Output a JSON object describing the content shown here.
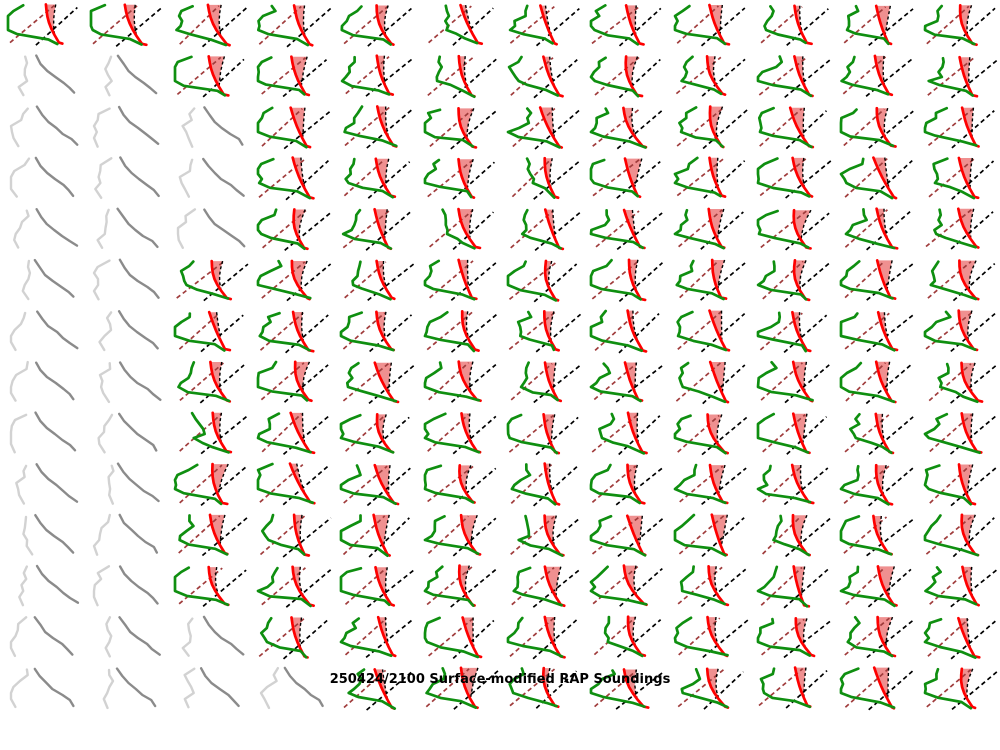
{
  "title": "250424/2100 Surface-modified RAP Soundings",
  "chart_data": {
    "type": "small_multiples",
    "subplot_type": "skewt_sounding_thumbnail",
    "title": "250424/2100 Surface-modified RAP Soundings",
    "grid": {
      "columns": 12,
      "rows": 14
    },
    "cell_states": [
      "cccccccccccc",
      "ggcccccccccc",
      "gggccccccccc",
      "gggccccccccc",
      "gggccccccccc",
      "ggcccccccccc",
      "ggcccccccccc",
      "ggcccccccccc",
      "ggcccccccccc",
      "ggcccccccccc",
      "ggcccccccccc",
      "ggcccccccccc",
      "gggccccccccc",
      "ggggcccccccc"
    ],
    "cell_state_meaning": {
      "c": "active sounding: green dewpoint line, red temperature line, pink CAPE fill bounded by black dashed parcel trace, dark-red dashed and black dashed reference diagonals",
      "g": "inactive sounding: light-gray dewpoint line and gray temperature line only"
    },
    "legend_position": "none",
    "axes": "none (thumbnails drawn without axis ticks or labels)",
    "colors": {
      "dewpoint_green": "#0f8f10",
      "temperature_red": "#fe0000",
      "cape_fill_pink": "#ef9090",
      "parcel_trace_black": "#000000",
      "reference_dashed_dark_red": "#a03c3c",
      "reference_dashed_black": "#000000",
      "inactive_light_gray": "#d2d2d2",
      "inactive_dark_gray": "#8b8b8b",
      "background": "#ffffff",
      "title_color": "#000000"
    }
  }
}
